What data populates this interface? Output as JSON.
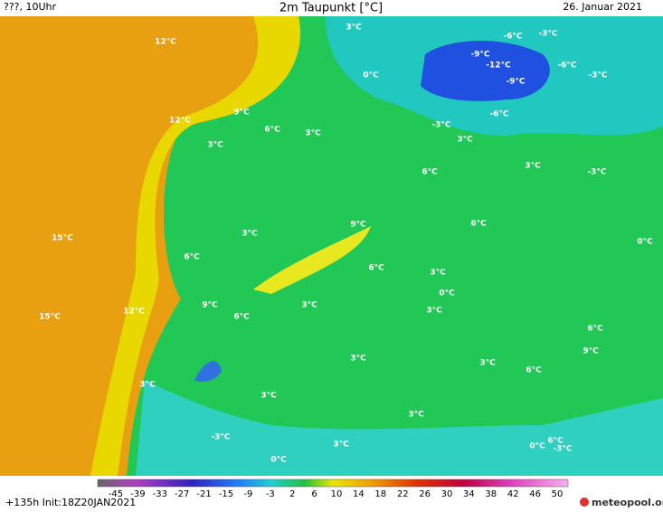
{
  "header": {
    "left": "???, 10Uhr",
    "title": "2m Taupunkt [°C]",
    "date": "26. Januar 2021"
  },
  "map_labels": [
    "12°C",
    "3°C",
    "-6°C",
    "-3°C",
    "-9°C",
    "-12°C",
    "-6°C",
    "-3°C",
    "-9°C",
    "0°C",
    "9°C",
    "12°C",
    "6°C",
    "3°C",
    "-3°C",
    "-6°C",
    "3°C",
    "3°C",
    "6°C",
    "3°C",
    "-3°C",
    "9°C",
    "6°C",
    "3°C",
    "15°C",
    "0°C",
    "6°C",
    "6°C",
    "3°C",
    "0°C",
    "9°C",
    "3°C",
    "12°C",
    "6°C",
    "3°C",
    "15°C",
    "6°C",
    "9°C",
    "3°C",
    "3°C",
    "6°C",
    "3°C",
    "3°C",
    "3°C",
    "-3°C",
    "3°C",
    "6°C",
    "-3°C",
    "0°C",
    "0°C"
  ],
  "colorbar": {
    "ticks": [
      -45,
      -39,
      -33,
      -27,
      -21,
      -15,
      -9,
      -3,
      2,
      6,
      10,
      14,
      18,
      22,
      26,
      30,
      34,
      38,
      42,
      46,
      50
    ]
  },
  "footer": {
    "run": "+135h Init:18Z20JAN2021",
    "logo": "meteopool.org"
  }
}
